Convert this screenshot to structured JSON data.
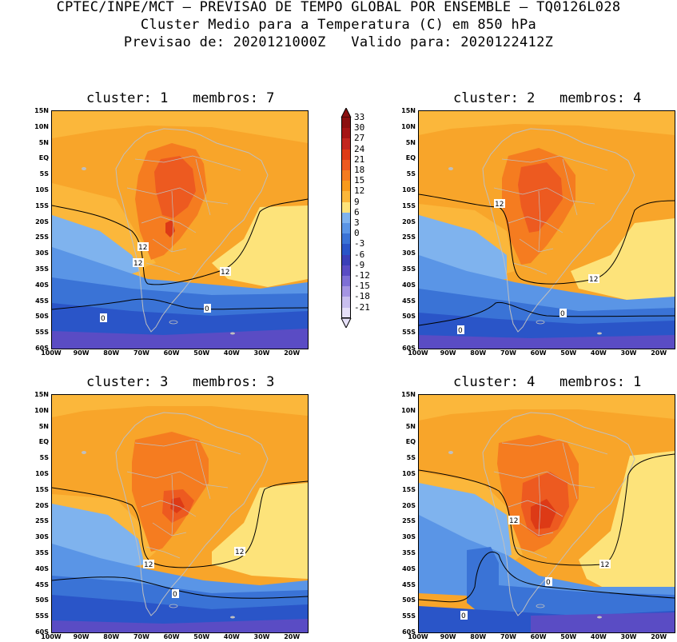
{
  "header": {
    "line1": "CPTEC/INPE/MCT – PREVISAO DE TEMPO GLOBAL POR ENSEMBLE – TQ0126L028",
    "line2": "Cluster Medio para a Temperatura (C) em 850 hPa",
    "line3": "Previsao de: 2020121000Z   Valido para: 2020122412Z"
  },
  "lat_labels": [
    "15N",
    "10N",
    "5N",
    "EQ",
    "5S",
    "10S",
    "15S",
    "20S",
    "25S",
    "30S",
    "35S",
    "40S",
    "45S",
    "50S",
    "55S",
    "60S"
  ],
  "lon_labels": [
    "100W",
    "90W",
    "80W",
    "70W",
    "60W",
    "50W",
    "40W",
    "30W",
    "20W"
  ],
  "panels": [
    {
      "title": "cluster: 1   membros: 7",
      "contour_labels": [
        "12",
        "12",
        "12",
        "0",
        "0"
      ]
    },
    {
      "title": "cluster: 2   membros: 4",
      "contour_labels": [
        "12",
        "12",
        "0",
        "0"
      ]
    },
    {
      "title": "cluster: 3   membros: 3",
      "contour_labels": [
        "12",
        "12",
        "0"
      ]
    },
    {
      "title": "cluster: 4   membros: 1",
      "contour_labels": [
        "12",
        "12",
        "0",
        "0"
      ]
    }
  ],
  "colorbar": {
    "labels": [
      "33",
      "30",
      "27",
      "24",
      "21",
      "18",
      "15",
      "12",
      "9",
      "6",
      "3",
      "0",
      "-3",
      "-6",
      "-9",
      "-12",
      "-15",
      "-18",
      "-21"
    ],
    "colors": [
      "#8b0f0f",
      "#a51414",
      "#c3261f",
      "#dd3a16",
      "#ed5a20",
      "#f57c20",
      "#f89a1d",
      "#fbb73b",
      "#fde37a",
      "#7fb3ee",
      "#5a95e6",
      "#3a73d6",
      "#2a55c8",
      "#3b3fb8",
      "#5a4cc4",
      "#7e6fd6",
      "#a595e3",
      "#c9bfee",
      "#e6e0f8"
    ],
    "top_arrow_color": "#8b0f0f",
    "bottom_arrow_color": "#e6e0f8"
  }
}
